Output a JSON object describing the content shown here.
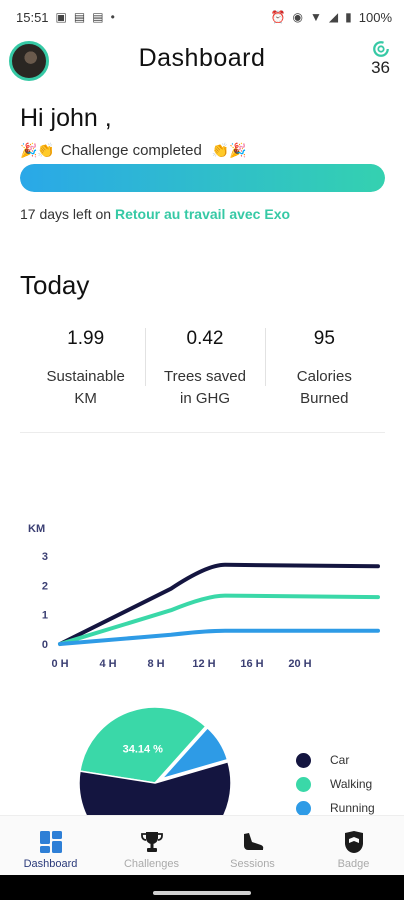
{
  "status_bar": {
    "time": "15:51",
    "battery": "100%",
    "left_icons": [
      "gallery-icon",
      "teams-icon",
      "teams-icon",
      "dot-icon"
    ],
    "right_icons": [
      "alarm-icon",
      "eye-icon",
      "wifi-icon",
      "signal-icon",
      "battery-icon"
    ]
  },
  "header": {
    "title": "Dashboard",
    "streak_count": "36"
  },
  "greeting": {
    "text": "Hi john ,",
    "challenge_status": "Challenge completed",
    "progress": 1.0,
    "days_left_prefix": "17 days left on",
    "challenge_name": "Retour au travail avec Exo"
  },
  "today": {
    "title": "Today",
    "stats": [
      {
        "value": "1.99",
        "label_line1": "Sustainable",
        "label_line2": "KM"
      },
      {
        "value": "0.42",
        "label_line1": "Trees saved",
        "label_line2": "in GHG"
      },
      {
        "value": "95",
        "label_line1": "Calories",
        "label_line2": "Burned"
      }
    ]
  },
  "chart_data": [
    {
      "type": "line",
      "ylabel": "KM",
      "x_ticks": [
        "0 H",
        "4 H",
        "8 H",
        "12 H",
        "16 H",
        "20 H"
      ],
      "y_ticks": [
        "0",
        "1",
        "2",
        "3"
      ],
      "ylim": [
        0,
        3
      ],
      "x": [
        0,
        12,
        24
      ],
      "series": [
        {
          "name": "Car",
          "color": "#141540",
          "values": [
            0,
            2.7,
            2.65
          ]
        },
        {
          "name": "Walking",
          "color": "#3ad8a8",
          "values": [
            0,
            1.65,
            1.6
          ]
        },
        {
          "name": "Running",
          "color": "#2e9be6",
          "values": [
            0,
            0.45,
            0.45
          ]
        }
      ]
    },
    {
      "type": "pie",
      "series": [
        {
          "name": "Car",
          "color": "#141540",
          "value": 57.0
        },
        {
          "name": "Walking",
          "color": "#3ad8a8",
          "value": 34.14,
          "label": "34.14 %"
        },
        {
          "name": "Running",
          "color": "#2e9be6",
          "value": 8.86
        }
      ]
    }
  ],
  "legend": [
    {
      "name": "Car",
      "color": "#141540"
    },
    {
      "name": "Walking",
      "color": "#3ad8a8"
    },
    {
      "name": "Running",
      "color": "#2e9be6"
    }
  ],
  "nav": [
    {
      "label": "Dashboard",
      "icon": "dashboard-icon",
      "active": true
    },
    {
      "label": "Challenges",
      "icon": "trophy-icon",
      "active": false
    },
    {
      "label": "Sessions",
      "icon": "shoe-icon",
      "active": false
    },
    {
      "label": "Badge",
      "icon": "badge-icon",
      "active": false
    }
  ],
  "colors": {
    "accent": "#36c9a5",
    "progress_start": "#2aa8e8",
    "progress_end": "#34d1b0",
    "nav_active": "#2a3a7a"
  }
}
